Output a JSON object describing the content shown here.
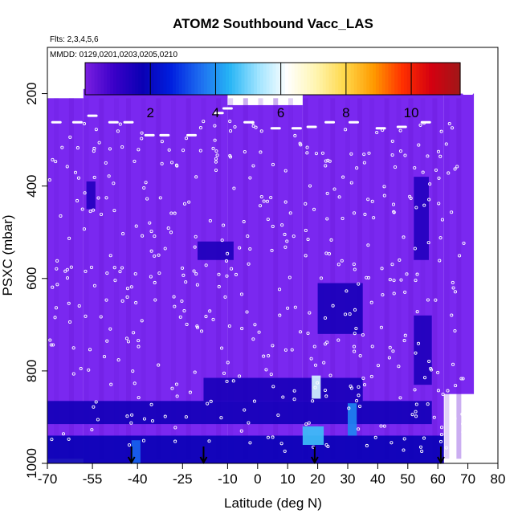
{
  "chart_data": {
    "type": "heatmap",
    "title": "ATOM2 Southbound Vacc_LAS",
    "notes": [
      "Flts: 2,3,4,5,6",
      "MMDD: 0129,0201,0203,0205,0210"
    ],
    "xlabel": "Latitude (deg N)",
    "ylabel": "PSXC (mbar)",
    "xlim": [
      -70,
      80
    ],
    "ylim_reversed": [
      1000,
      100
    ],
    "x_ticks": [
      -70,
      -55,
      -40,
      -25,
      -10,
      0,
      10,
      20,
      30,
      40,
      50,
      60,
      70,
      80
    ],
    "y_ticks": [
      200,
      400,
      600,
      800,
      1000
    ],
    "colorbar": {
      "range": [
        0,
        11.5
      ],
      "ticks": [
        2,
        4,
        6,
        8,
        10
      ],
      "colors": [
        "#7b1fe0",
        "#3a00c8",
        "#0a00b4",
        "#0020e0",
        "#1e6ef0",
        "#25b4f5",
        "#9fe4ff",
        "#ffffff",
        "#fff5b0",
        "#ffd84a",
        "#ff9a00",
        "#ff3000",
        "#d40010",
        "#a01818"
      ]
    },
    "background_color": "#7a28f0",
    "profile_latitudes": [
      -67,
      -62,
      -57,
      -52,
      -47,
      -43,
      -38,
      -33,
      -28,
      -23,
      -18,
      -13,
      -9,
      -4,
      1,
      6,
      11,
      16,
      21,
      25,
      30,
      34,
      38,
      43,
      47,
      51,
      55,
      59,
      63,
      67
    ],
    "coverage": [
      {
        "lat": [
          -70,
          -58
        ],
        "p": [
          210,
          990
        ]
      },
      {
        "lat": [
          -58,
          -10
        ],
        "p": [
          190,
          1000
        ]
      },
      {
        "lat": [
          -10,
          15
        ],
        "p": [
          225,
          1000
        ]
      },
      {
        "lat": [
          15,
          62
        ],
        "p": [
          200,
          1000
        ]
      },
      {
        "lat": [
          62,
          72
        ],
        "p": [
          200,
          850
        ]
      }
    ],
    "enhancements": [
      {
        "lat": [
          -70,
          62
        ],
        "p": [
          940,
          1000
        ],
        "value": 1.8
      },
      {
        "lat": [
          -70,
          58
        ],
        "p": [
          865,
          915
        ],
        "value": 1.6
      },
      {
        "lat": [
          -18,
          35
        ],
        "p": [
          815,
          865
        ],
        "value": 1.5
      },
      {
        "lat": [
          -20,
          -8
        ],
        "p": [
          520,
          560
        ],
        "value": 1.4
      },
      {
        "lat": [
          20,
          35
        ],
        "p": [
          610,
          720
        ],
        "value": 1.5
      },
      {
        "lat": [
          52,
          58
        ],
        "p": [
          680,
          830
        ],
        "value": 1.4
      },
      {
        "lat": [
          52,
          57
        ],
        "p": [
          380,
          560
        ],
        "value": 1.3
      },
      {
        "lat": [
          -57,
          -54
        ],
        "p": [
          390,
          450
        ],
        "value": 1.3
      },
      {
        "lat": [
          18,
          21
        ],
        "p": [
          810,
          860
        ],
        "value": 5.8
      },
      {
        "lat": [
          15,
          22
        ],
        "p": [
          920,
          960
        ],
        "value": 4.6
      },
      {
        "lat": [
          -42,
          -39
        ],
        "p": [
          950,
          1000
        ],
        "value": 3.4
      },
      {
        "lat": [
          30,
          33
        ],
        "p": [
          870,
          940
        ],
        "value": 3.8
      }
    ],
    "flight_legs_lat": [
      -67,
      -60,
      -55,
      -48,
      -43,
      -36,
      -31,
      -22,
      -13,
      -10,
      -3,
      6,
      13,
      18,
      24,
      32,
      41,
      48,
      56,
      70
    ],
    "flight_legs_p": [
      262,
      262,
      248,
      262,
      262,
      290,
      290,
      290,
      242,
      232,
      262,
      275,
      275,
      272,
      262,
      262,
      275,
      272,
      262,
      200
    ],
    "arrows_lat": [
      -42,
      -18,
      19,
      61
    ]
  }
}
